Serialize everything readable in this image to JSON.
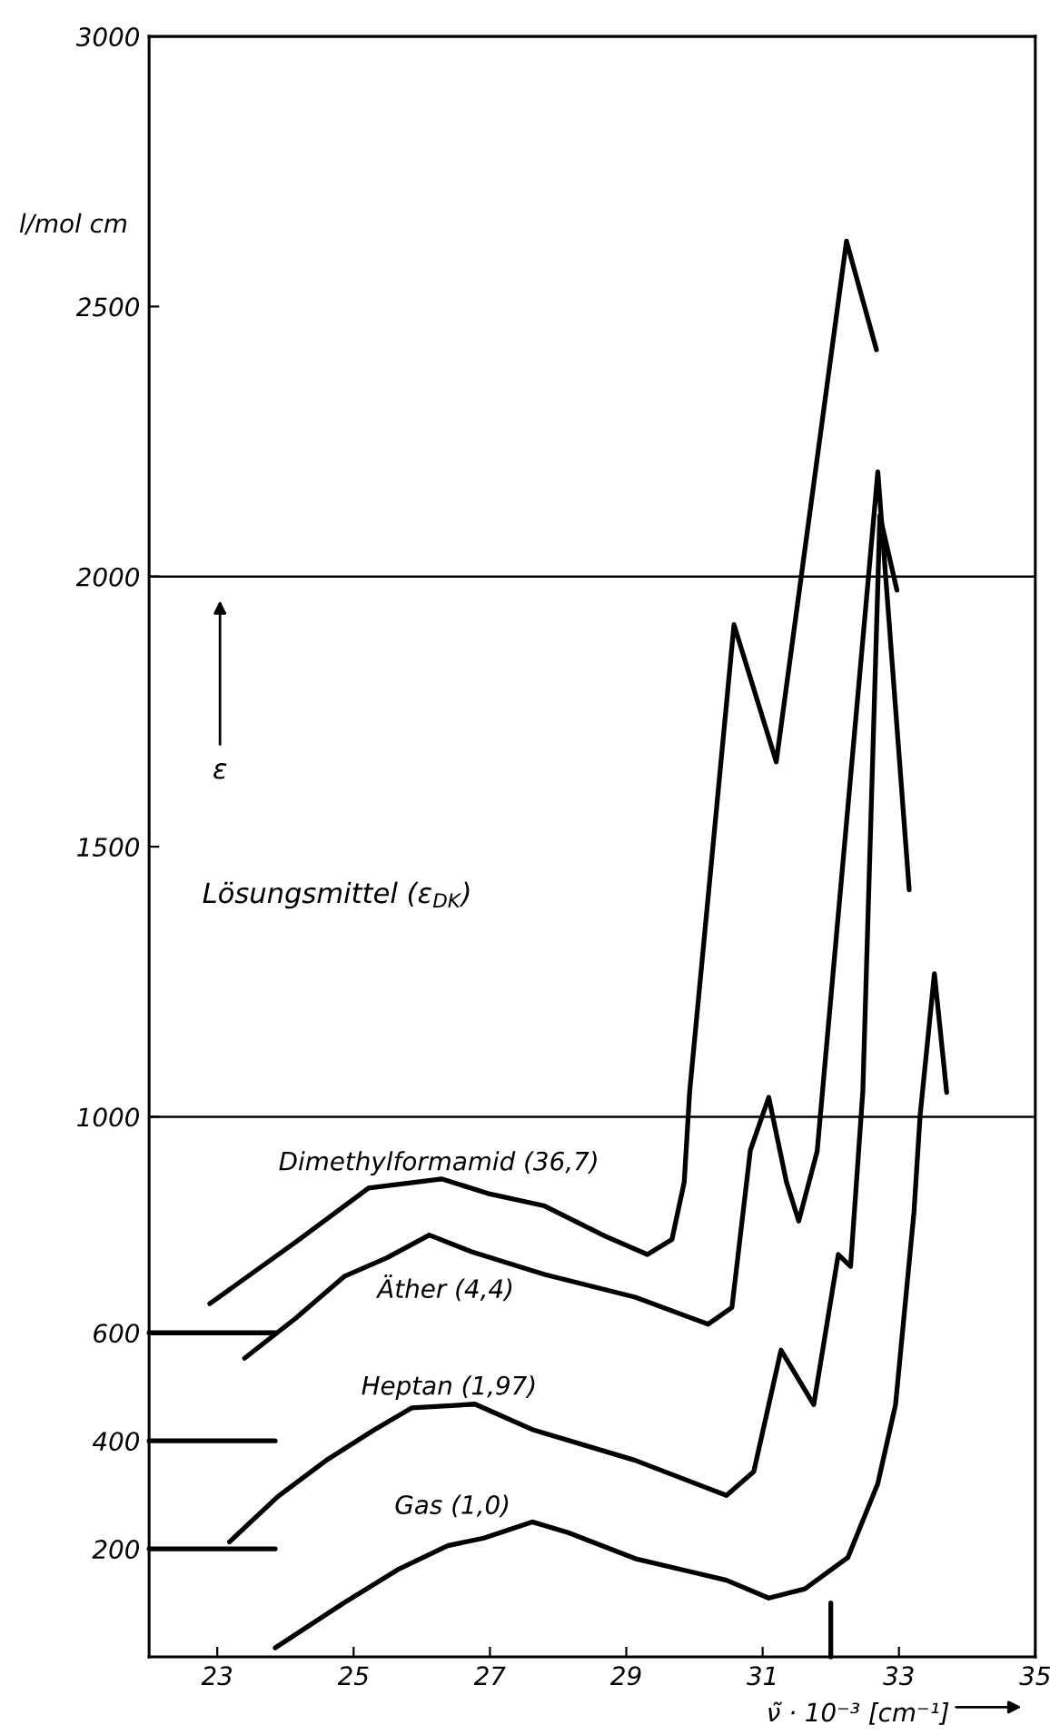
{
  "chart_data": {
    "type": "line",
    "xlabel": "ν̃ · 10⁻³ [cm⁻¹]",
    "ylabel": "l/mol cm",
    "xlim": [
      22,
      35
    ],
    "ylim": [
      0,
      3000
    ],
    "xticks": [
      23,
      25,
      27,
      29,
      31,
      33,
      35
    ],
    "yticks": [
      200,
      400,
      600,
      1000,
      1500,
      2000,
      2500,
      3000
    ],
    "grid": false,
    "legend": false,
    "marker": "none",
    "line_style": "solid",
    "ref_lines": [
      {
        "axis": "y",
        "value": 1000,
        "color": "#000000"
      },
      {
        "axis": "y",
        "value": 2000,
        "color": "#000000"
      }
    ],
    "annotations": [
      "ε",
      "Lösungsmittel (ε$_{DK}$)"
    ],
    "series": [
      {
        "name": "Dimethylformamid (36,7)",
        "color": "#000000",
        "x": [
          22.89,
          24.15,
          25.22,
          26.29,
          27.0,
          27.8,
          28.69,
          29.31,
          29.67,
          29.85,
          29.93,
          30.58,
          31.2,
          32.23,
          32.67
        ],
        "values": [
          654,
          768,
          868,
          885,
          857,
          835,
          779,
          745,
          773,
          879,
          1047,
          1911,
          1657,
          2621,
          2420
        ]
      },
      {
        "name": "Äther (4,4)",
        "color": "#000000",
        "x": [
          23.4,
          24.15,
          24.87,
          25.49,
          26.11,
          26.73,
          27.8,
          29.13,
          30.2,
          30.55,
          30.82,
          31.09,
          31.35,
          31.53,
          31.8,
          32.69,
          33.15
        ],
        "values": [
          553,
          627,
          705,
          739,
          781,
          750,
          708,
          666,
          616,
          647,
          938,
          1036,
          879,
          807,
          936,
          2194,
          1420
        ]
      },
      {
        "name": "Heptan (1,97)",
        "color": "#000000",
        "x": [
          23.18,
          23.89,
          24.6,
          25.31,
          25.85,
          26.78,
          27.62,
          29.13,
          30.47,
          30.87,
          31.27,
          31.75,
          32.11,
          32.29,
          32.47,
          32.72,
          32.97
        ],
        "values": [
          213,
          297,
          364,
          421,
          461,
          468,
          421,
          364,
          299,
          343,
          568,
          467,
          745,
          723,
          1047,
          2113,
          1975
        ]
      },
      {
        "name": "Gas (1,0)",
        "color": "#000000",
        "x": [
          23.85,
          24.87,
          25.67,
          26.38,
          26.91,
          27.62,
          28.15,
          29.13,
          30.47,
          31.09,
          31.62,
          32.25,
          32.69,
          32.95,
          33.22,
          33.31,
          33.52,
          33.7
        ],
        "values": [
          17,
          101,
          163,
          206,
          220,
          250,
          230,
          182,
          142,
          109,
          126,
          184,
          321,
          467,
          823,
          1002,
          1265,
          1045
        ]
      },
      {
        "color": "#000000",
        "x": [
          22,
          23.85
        ],
        "values": [
          600,
          600
        ]
      },
      {
        "color": "#000000",
        "x": [
          22,
          23.85
        ],
        "values": [
          400,
          400
        ]
      },
      {
        "color": "#000000",
        "x": [
          22,
          23.85
        ],
        "values": [
          200,
          200
        ]
      },
      {
        "color": "#000000",
        "x": [
          32,
          32
        ],
        "values": [
          0,
          100
        ]
      }
    ]
  }
}
